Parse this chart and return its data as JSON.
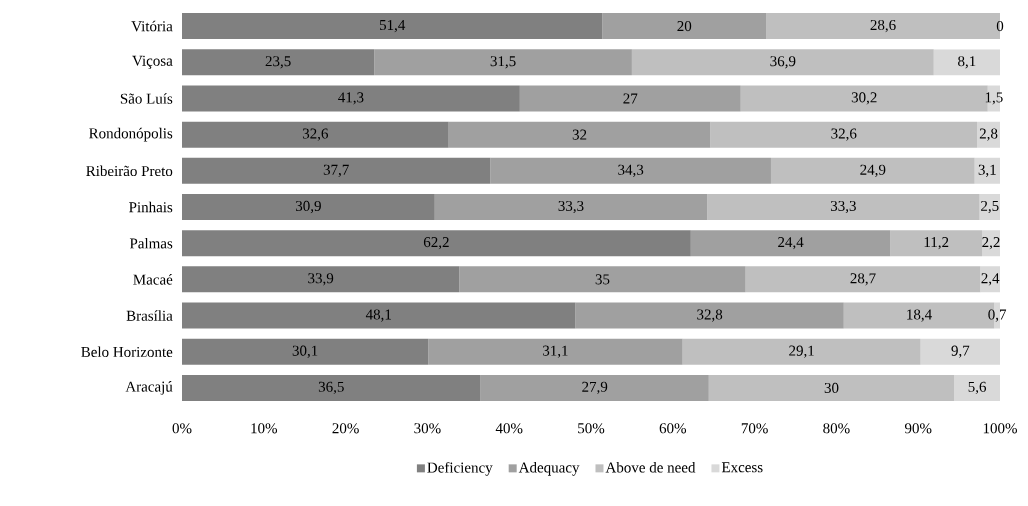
{
  "chart_data": {
    "type": "bar",
    "orientation": "horizontal",
    "stacked": true,
    "categories": [
      "Vitória",
      "Viçosa",
      "São Luís",
      "Rondonópolis",
      "Ribeirão Preto",
      "Pinhais",
      "Palmas",
      "Macaé",
      "Brasília",
      "Belo Horizonte",
      "Aracajú"
    ],
    "series": [
      {
        "name": "Deficiency",
        "color": "#808080",
        "values": [
          51.4,
          23.5,
          41.3,
          32.6,
          37.7,
          30.9,
          62.2,
          33.9,
          48.1,
          30.1,
          36.5
        ],
        "value_labels": [
          "51,4",
          "23,5",
          "41,3",
          "32,6",
          "37,7",
          "30,9",
          "62,2",
          "33,9",
          "48,1",
          "30,1",
          "36,5"
        ]
      },
      {
        "name": "Adequacy",
        "color": "#a0a0a0",
        "values": [
          20,
          31.5,
          27,
          32,
          34.3,
          33.3,
          24.4,
          35,
          32.8,
          31.1,
          27.9
        ],
        "value_labels": [
          "20",
          "31,5",
          "27",
          "32",
          "34,3",
          "33,3",
          "24,4",
          "35",
          "32,8",
          "31,1",
          "27,9"
        ]
      },
      {
        "name": "Above de need",
        "color": "#bfbfbf",
        "values": [
          28.6,
          36.9,
          30.2,
          32.6,
          24.9,
          33.3,
          11.2,
          28.7,
          18.4,
          29.1,
          30
        ],
        "value_labels": [
          "28,6",
          "36,9",
          "30,2",
          "32,6",
          "24,9",
          "33,3",
          "11,2",
          "28,7",
          "18,4",
          "29,1",
          "30"
        ]
      },
      {
        "name": "Excess",
        "color": "#d9d9d9",
        "values": [
          0,
          8.1,
          1.5,
          2.8,
          3.1,
          2.5,
          2.2,
          2.4,
          0.7,
          9.7,
          5.6
        ],
        "value_labels": [
          "0",
          "8,1",
          "1,5",
          "2,8",
          "3,1",
          "2,5",
          "2,2",
          "2,4",
          "0,7",
          "9,7",
          "5,6"
        ]
      }
    ],
    "xlim": [
      0,
      100
    ],
    "xticks": [
      {
        "value": 0,
        "label": "0%"
      },
      {
        "value": 10,
        "label": "10%"
      },
      {
        "value": 20,
        "label": "20%"
      },
      {
        "value": 30,
        "label": "30%"
      },
      {
        "value": 40,
        "label": "40%"
      },
      {
        "value": 50,
        "label": "50%"
      },
      {
        "value": 60,
        "label": "60%"
      },
      {
        "value": 70,
        "label": "70%"
      },
      {
        "value": 80,
        "label": "80%"
      },
      {
        "value": 90,
        "label": "90%"
      },
      {
        "value": 100,
        "label": "100%"
      }
    ],
    "legend": "bottom"
  }
}
